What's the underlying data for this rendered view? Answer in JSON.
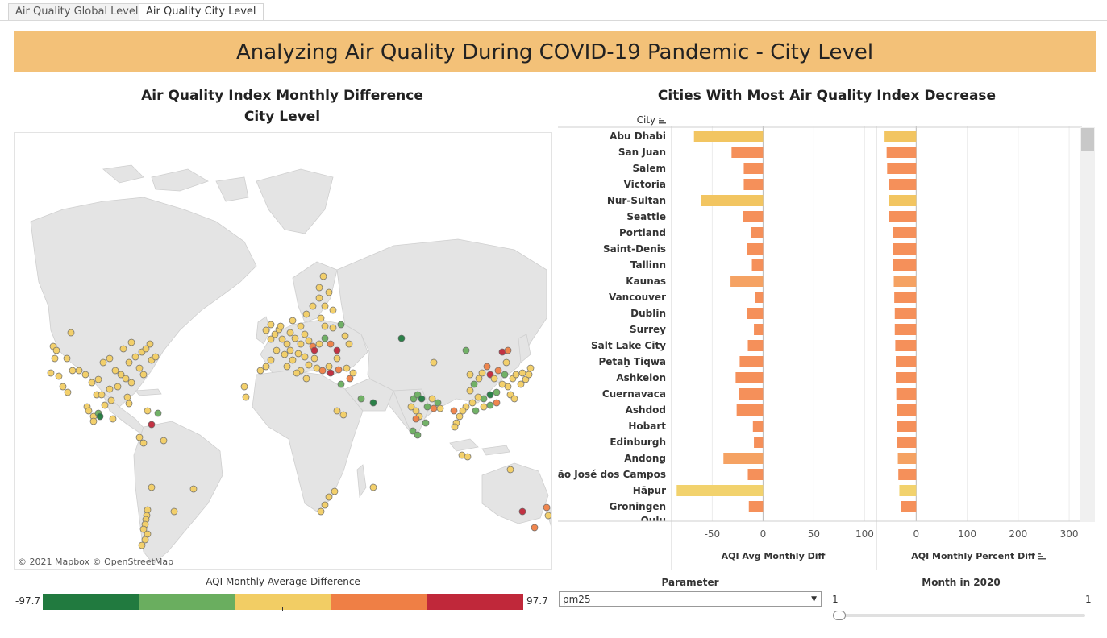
{
  "tabs": [
    {
      "label": "Air Quality Global Level"
    },
    {
      "label": "Air Quality City Level"
    }
  ],
  "banner": {
    "title": "Analyzing Air Quality During COVID-19 Pandemic - City Level"
  },
  "map": {
    "title_line1": "Air Quality Index Monthly Difference",
    "title_line2": "City Level",
    "credit": "© 2021 Mapbox  © OpenStreetMap"
  },
  "legend": {
    "title": "AQI Monthly Average Difference",
    "min": "-97.7",
    "max": "97.7",
    "colors": [
      "#217a3f",
      "#6aae5f",
      "#f2cd64",
      "#ef7f45",
      "#c0283a"
    ]
  },
  "bars_panel": {
    "title": "Cities With Most Air Quality Index Decrease",
    "city_header": "City",
    "bottom_cut_label": "Oulu"
  },
  "parameter": {
    "title": "Parameter",
    "value": "pm25"
  },
  "month": {
    "title": "Month in 2020",
    "min_label": "1",
    "max_label": "1",
    "value": 1
  },
  "chart_data": [
    {
      "type": "bar",
      "orientation": "horizontal",
      "categories": [
        "Abu Dhabi",
        "San Juan",
        "Salem",
        "Victoria",
        "Nur-Sultan",
        "Seattle",
        "Portland",
        "Saint-Denis",
        "Tallinn",
        "Kaunas",
        "Vancouver",
        "Dublin",
        "Surrey",
        "Salt Lake City",
        "Petaẖ Tiqwa",
        "Ashkelon",
        "Cuernavaca",
        "Ashdod",
        "Hobart",
        "Edinburgh",
        "Andong",
        "São José dos Campos",
        "Hāpur",
        "Groningen"
      ],
      "series": [
        {
          "name": "AQI Avg Monthly Diff",
          "values": [
            -68,
            -31,
            -19,
            -19,
            -61,
            -20,
            -12,
            -16,
            -11,
            -32,
            -8,
            -16,
            -9,
            -15,
            -23,
            -27,
            -24,
            -26,
            -10,
            -9,
            -39,
            -15,
            -85,
            -14
          ]
        }
      ],
      "bar_colors": [
        "#f2c561",
        "#f5905a",
        "#f5905a",
        "#f5905a",
        "#f2c561",
        "#f5905a",
        "#f5905a",
        "#f5905a",
        "#f5905a",
        "#f5a263",
        "#f5905a",
        "#f5905a",
        "#f5905a",
        "#f5905a",
        "#f5905a",
        "#f5905a",
        "#f5905a",
        "#f5905a",
        "#f5905a",
        "#f5905a",
        "#f5a263",
        "#f5905a",
        "#f2d26d",
        "#f5905a"
      ],
      "xlabel": "AQI Avg Monthly Diff",
      "xlim": [
        -90,
        110
      ],
      "xticks": [
        -50,
        0,
        50,
        100
      ],
      "ylabel": "City"
    },
    {
      "type": "bar",
      "orientation": "horizontal",
      "categories": [
        "Abu Dhabi",
        "San Juan",
        "Salem",
        "Victoria",
        "Nur-Sultan",
        "Seattle",
        "Portland",
        "Saint-Denis",
        "Tallinn",
        "Kaunas",
        "Vancouver",
        "Dublin",
        "Surrey",
        "Salt Lake City",
        "Petaẖ Tiqwa",
        "Ashkelon",
        "Cuernavaca",
        "Ashdod",
        "Hobart",
        "Edinburgh",
        "Andong",
        "São José dos Campos",
        "Hāpur",
        "Groningen"
      ],
      "series": [
        {
          "name": "AQI Monthly Percent Diff",
          "values": [
            -62,
            -58,
            -57,
            -54,
            -54,
            -53,
            -45,
            -45,
            -45,
            -44,
            -43,
            -42,
            -42,
            -41,
            -40,
            -40,
            -39,
            -38,
            -37,
            -37,
            -36,
            -35,
            -33,
            -30
          ]
        }
      ],
      "bar_colors": [
        "#f2c561",
        "#f5905a",
        "#f5905a",
        "#f5905a",
        "#f2c561",
        "#f5905a",
        "#f5905a",
        "#f5905a",
        "#f5905a",
        "#f5a263",
        "#f5905a",
        "#f5905a",
        "#f5905a",
        "#f5905a",
        "#f5905a",
        "#f5905a",
        "#f5905a",
        "#f5905a",
        "#f5905a",
        "#f5905a",
        "#f5a263",
        "#f5905a",
        "#f2d26d",
        "#f5905a"
      ],
      "xlabel": "AQI Monthly Percent Diff",
      "xlim": [
        -78,
        322
      ],
      "xticks": [
        0,
        100,
        200,
        300
      ]
    },
    {
      "type": "scatter",
      "subtype": "map",
      "series": [
        {
          "name": "Yellow",
          "color": "#f2cd64"
        },
        {
          "name": "Light green",
          "color": "#6aae5f"
        },
        {
          "name": "Dark green",
          "color": "#217a3f"
        },
        {
          "name": "Orange",
          "color": "#ef7f45"
        },
        {
          "name": "Red",
          "color": "#c0283a"
        }
      ]
    }
  ]
}
